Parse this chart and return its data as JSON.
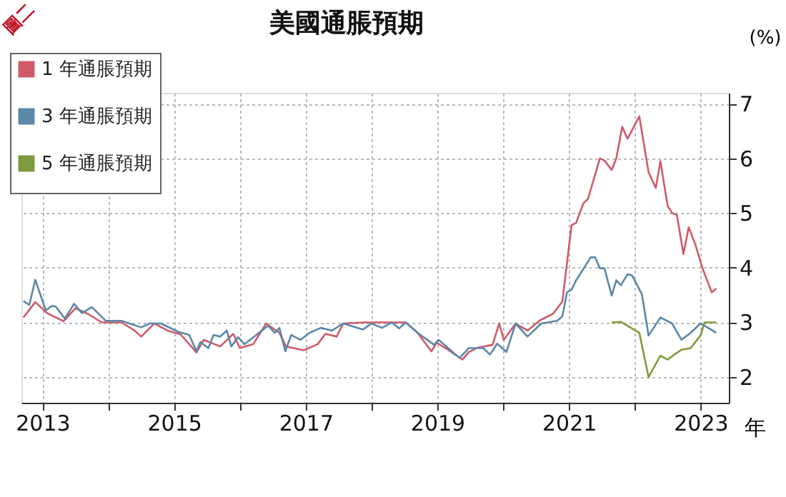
{
  "chart_data": {
    "type": "line",
    "title": "美國通脹預期",
    "ylabel": "(%)",
    "xlabel": "年",
    "annotations": [
      "圖二"
    ],
    "xlim": [
      2012.68,
      2023.43
    ],
    "ylim": [
      1.53,
      7.2
    ],
    "xticks": [
      2013,
      {
        "value": 2014,
        "label": null
      },
      2015,
      {
        "value": 2016,
        "label": null
      },
      2017,
      {
        "value": 2018,
        "label": null
      },
      2019,
      {
        "value": 2020,
        "label": null
      },
      2021,
      {
        "value": 2022,
        "label": null
      },
      2023
    ],
    "yticks": [
      2,
      3,
      4,
      5,
      6,
      7
    ],
    "grid": true,
    "legend": "top left",
    "line_style": "solid",
    "marker": "none",
    "series": [
      {
        "name": "1 年通脹預期",
        "color": "#d05a6a",
        "x": [
          2012.71,
          2012.89,
          2013.07,
          2013.32,
          2013.5,
          2013.7,
          2013.9,
          2014.2,
          2014.4,
          2014.5,
          2014.7,
          2014.9,
          2015.1,
          2015.34,
          2015.45,
          2015.7,
          2015.9,
          2016.0,
          2016.2,
          2016.4,
          2016.6,
          2016.7,
          2016.97,
          2017.18,
          2017.3,
          2017.47,
          2017.57,
          2017.9,
          2018.2,
          2018.31,
          2018.52,
          2018.7,
          2018.91,
          2018.99,
          2019.16,
          2019.38,
          2019.48,
          2019.62,
          2019.84,
          2019.94,
          2020.01,
          2020.19,
          2020.37,
          2020.55,
          2020.76,
          2020.9,
          2021.04,
          2021.11,
          2021.22,
          2021.29,
          2021.47,
          2021.54,
          2021.65,
          2021.72,
          2021.81,
          2021.89,
          2022.07,
          2022.21,
          2022.32,
          2022.39,
          2022.5,
          2022.57,
          2022.64,
          2022.74,
          2022.82,
          2022.92,
          2023.03,
          2023.17,
          2023.24
        ],
        "values": [
          3.09,
          3.37,
          3.17,
          3.02,
          3.26,
          3.15,
          3.0,
          3.0,
          2.85,
          2.74,
          2.98,
          2.85,
          2.78,
          2.45,
          2.68,
          2.56,
          2.79,
          2.53,
          2.6,
          2.98,
          2.81,
          2.56,
          2.49,
          2.6,
          2.79,
          2.74,
          2.98,
          3.0,
          3.0,
          3.0,
          3.0,
          2.81,
          2.47,
          2.63,
          2.5,
          2.32,
          2.46,
          2.54,
          2.59,
          2.98,
          2.68,
          2.98,
          2.85,
          3.03,
          3.16,
          3.38,
          4.78,
          4.82,
          5.18,
          5.26,
          6.0,
          5.96,
          5.79,
          6.0,
          6.58,
          6.36,
          6.77,
          5.75,
          5.46,
          5.95,
          5.13,
          5.0,
          4.97,
          4.25,
          4.74,
          4.43,
          3.99,
          3.55,
          3.62
        ]
      },
      {
        "name": "3 年通脹預期",
        "color": "#5b87a8",
        "x": [
          2012.71,
          2012.8,
          2012.89,
          2013.05,
          2013.14,
          2013.2,
          2013.34,
          2013.48,
          2013.6,
          2013.75,
          2013.96,
          2014.2,
          2014.5,
          2014.63,
          2014.8,
          2015.06,
          2015.23,
          2015.34,
          2015.4,
          2015.52,
          2015.6,
          2015.7,
          2015.8,
          2015.87,
          2015.97,
          2016.07,
          2016.25,
          2016.43,
          2016.53,
          2016.6,
          2016.69,
          2016.78,
          2016.92,
          2017.06,
          2017.23,
          2017.4,
          2017.57,
          2017.87,
          2018.0,
          2018.16,
          2018.31,
          2018.42,
          2018.52,
          2018.7,
          2018.95,
          2019.02,
          2019.23,
          2019.34,
          2019.48,
          2019.7,
          2019.8,
          2019.91,
          2020.05,
          2020.19,
          2020.37,
          2020.58,
          2020.82,
          2020.9,
          2020.97,
          2021.04,
          2021.11,
          2021.33,
          2021.4,
          2021.47,
          2021.54,
          2021.65,
          2021.72,
          2021.79,
          2021.89,
          2021.96,
          2022.11,
          2022.21,
          2022.39,
          2022.57,
          2022.71,
          2022.85,
          2023.0,
          2023.13,
          2023.24
        ],
        "values": [
          3.39,
          3.32,
          3.78,
          3.22,
          3.3,
          3.29,
          3.07,
          3.34,
          3.17,
          3.28,
          3.03,
          3.03,
          2.91,
          2.98,
          2.98,
          2.83,
          2.77,
          2.47,
          2.64,
          2.53,
          2.77,
          2.74,
          2.85,
          2.56,
          2.73,
          2.6,
          2.77,
          2.94,
          2.81,
          2.9,
          2.47,
          2.77,
          2.68,
          2.81,
          2.9,
          2.85,
          2.98,
          2.87,
          2.98,
          2.9,
          3.0,
          2.89,
          3.0,
          2.81,
          2.59,
          2.68,
          2.46,
          2.35,
          2.53,
          2.53,
          2.41,
          2.61,
          2.46,
          2.98,
          2.74,
          2.98,
          3.03,
          3.11,
          3.55,
          3.6,
          3.77,
          4.19,
          4.19,
          3.99,
          3.99,
          3.49,
          3.77,
          3.68,
          3.88,
          3.86,
          3.51,
          2.76,
          3.09,
          2.98,
          2.68,
          2.81,
          2.98,
          2.89,
          2.81
        ]
      },
      {
        "name": "5 年通脹預期",
        "color": "#7e9b3d",
        "x": [
          2021.65,
          2021.79,
          2022.07,
          2022.21,
          2022.39,
          2022.5,
          2022.6,
          2022.71,
          2022.85,
          2023.0,
          2023.06,
          2023.24
        ],
        "values": [
          3.0,
          3.01,
          2.81,
          2.0,
          2.39,
          2.32,
          2.41,
          2.5,
          2.53,
          2.76,
          3.0,
          3.0
        ]
      }
    ]
  }
}
